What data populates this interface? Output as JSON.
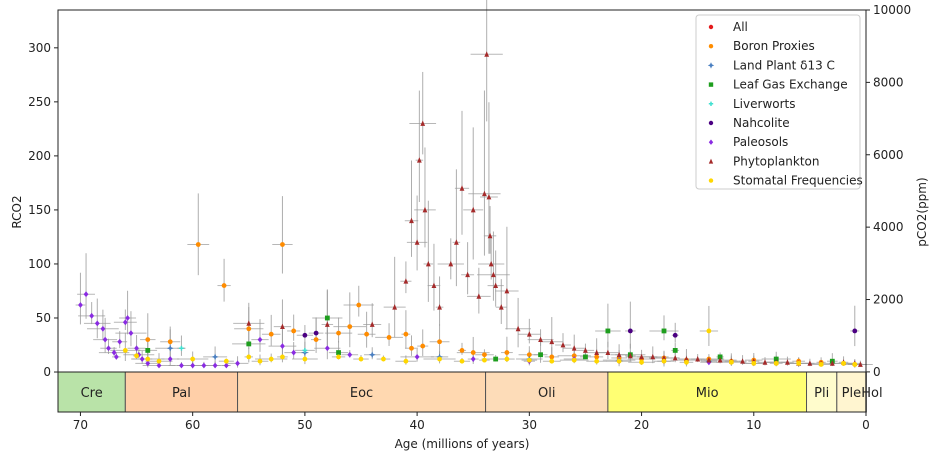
{
  "chart_data": {
    "type": "scatter",
    "xlabel": "Age (millions of years)",
    "ylabel_left": "RCO2",
    "ylabel_right": "pCO2(ppm)",
    "xlim": [
      72,
      0
    ],
    "ylim_left": [
      -37,
      335
    ],
    "ylim_right": [
      -1108,
      10000
    ],
    "x_ticks": [
      70,
      60,
      50,
      40,
      30,
      20,
      10,
      0
    ],
    "y_ticks_left": [
      0,
      50,
      100,
      150,
      200,
      250,
      300
    ],
    "y_ticks_right": [
      0,
      2000,
      4000,
      6000,
      8000,
      10000
    ],
    "legend": {
      "position": "top-right",
      "entries": [
        {
          "name": "All",
          "color": "#e41a1c",
          "marker": "circle"
        },
        {
          "name": "Boron Proxies",
          "color": "#ff8c00",
          "marker": "circle"
        },
        {
          "name": "Land Plant δ13 C",
          "color": "#4a7fc1",
          "marker": "star"
        },
        {
          "name": "Leaf Gas Exchange",
          "color": "#1e9e1e",
          "marker": "square"
        },
        {
          "name": "Liverworts",
          "color": "#40e0d0",
          "marker": "cross"
        },
        {
          "name": "Nahcolite",
          "color": "#4b0082",
          "marker": "circle"
        },
        {
          "name": "Paleosols",
          "color": "#8a2be2",
          "marker": "diamond"
        },
        {
          "name": "Phytoplankton",
          "color": "#a52a2a",
          "marker": "triangle"
        },
        {
          "name": "Stomatal Frequencies",
          "color": "#ffd700",
          "marker": "circle"
        }
      ]
    },
    "epochs": [
      {
        "label": "Cre",
        "start": 72,
        "end": 66,
        "color": "#b9e3a8"
      },
      {
        "label": "Pal",
        "start": 66,
        "end": 56,
        "color": "#ffcfa8"
      },
      {
        "label": "Eoc",
        "start": 56,
        "end": 33.9,
        "color": "#ffd8b0"
      },
      {
        "label": "Oli",
        "start": 33.9,
        "end": 23,
        "color": "#fddcb8"
      },
      {
        "label": "Mio",
        "start": 23,
        "end": 5.3,
        "color": "#ffff73"
      },
      {
        "label": "Pli",
        "start": 5.3,
        "end": 2.6,
        "color": "#fffccc"
      },
      {
        "label": "Ple",
        "start": 2.6,
        "end": 0.01,
        "color": "#fff5d0"
      },
      {
        "label": "Hol",
        "start": 0.01,
        "end": 0,
        "color": "#fff5d0"
      }
    ],
    "series": [
      {
        "name": "Boron Proxies",
        "points": [
          [
            59.5,
            118
          ],
          [
            57.2,
            80
          ],
          [
            52,
            118
          ],
          [
            45.2,
            62
          ],
          [
            44.5,
            35
          ],
          [
            42.5,
            32
          ],
          [
            41,
            35
          ],
          [
            40.5,
            22
          ],
          [
            39.5,
            24
          ],
          [
            38,
            28
          ],
          [
            36,
            20
          ],
          [
            35,
            18
          ],
          [
            34,
            16
          ],
          [
            32,
            18
          ],
          [
            30,
            16
          ],
          [
            28,
            14
          ],
          [
            26,
            15
          ],
          [
            24,
            14
          ],
          [
            22,
            13
          ],
          [
            20,
            12
          ],
          [
            18,
            13
          ],
          [
            16,
            11
          ],
          [
            14,
            12
          ],
          [
            12,
            10
          ],
          [
            10,
            11
          ],
          [
            8,
            9
          ],
          [
            6,
            10
          ],
          [
            4,
            9
          ],
          [
            2,
            8
          ],
          [
            1,
            7
          ],
          [
            64,
            30
          ],
          [
            62,
            28
          ],
          [
            55,
            40
          ],
          [
            53,
            35
          ],
          [
            51,
            38
          ],
          [
            49,
            30
          ],
          [
            47,
            36
          ],
          [
            46,
            42
          ]
        ]
      },
      {
        "name": "Land Plant δ13 C",
        "points": [
          [
            62,
            22
          ],
          [
            58,
            14
          ],
          [
            50,
            18
          ],
          [
            44,
            16
          ],
          [
            38,
            14
          ],
          [
            30,
            12
          ],
          [
            22,
            11
          ],
          [
            14,
            10
          ]
        ]
      },
      {
        "name": "Leaf Gas Exchange",
        "points": [
          [
            64,
            20
          ],
          [
            55,
            26
          ],
          [
            48,
            50
          ],
          [
            47,
            18
          ],
          [
            33,
            12
          ],
          [
            29,
            16
          ],
          [
            25,
            14
          ],
          [
            23,
            38
          ],
          [
            21,
            16
          ],
          [
            18,
            38
          ],
          [
            17,
            20
          ],
          [
            13,
            14
          ],
          [
            8,
            12
          ],
          [
            3,
            10
          ]
        ]
      },
      {
        "name": "Liverworts",
        "points": [
          [
            61,
            22
          ],
          [
            50,
            20
          ]
        ]
      },
      {
        "name": "Nahcolite",
        "points": [
          [
            50,
            34
          ],
          [
            49,
            36
          ],
          [
            21,
            38
          ],
          [
            17,
            34
          ],
          [
            1,
            38
          ]
        ]
      },
      {
        "name": "Paleosols",
        "points": [
          [
            70,
            62
          ],
          [
            69.5,
            72
          ],
          [
            69,
            52
          ],
          [
            68.5,
            45
          ],
          [
            68,
            40
          ],
          [
            67.8,
            30
          ],
          [
            67.5,
            22
          ],
          [
            67,
            18
          ],
          [
            66.8,
            14
          ],
          [
            66.5,
            28
          ],
          [
            66,
            46
          ],
          [
            65.8,
            50
          ],
          [
            65.5,
            36
          ],
          [
            65,
            22
          ],
          [
            64.8,
            16
          ],
          [
            64.5,
            12
          ],
          [
            64,
            8
          ],
          [
            63,
            6
          ],
          [
            62,
            12
          ],
          [
            61,
            6
          ],
          [
            60,
            6
          ],
          [
            59,
            6
          ],
          [
            58,
            6
          ],
          [
            57,
            6
          ],
          [
            56,
            8
          ],
          [
            54,
            30
          ],
          [
            52,
            24
          ],
          [
            51,
            18
          ],
          [
            48,
            22
          ],
          [
            46,
            16
          ],
          [
            40,
            14
          ],
          [
            35,
            12
          ],
          [
            30,
            10
          ],
          [
            26,
            12
          ],
          [
            22,
            10
          ],
          [
            18,
            10
          ],
          [
            14,
            9
          ],
          [
            10,
            8
          ],
          [
            6,
            8
          ]
        ]
      },
      {
        "name": "Phytoplankton",
        "points": [
          [
            55,
            45
          ],
          [
            52,
            42
          ],
          [
            48,
            44
          ],
          [
            44,
            44
          ],
          [
            42,
            60
          ],
          [
            41,
            84
          ],
          [
            40.5,
            140
          ],
          [
            40,
            120
          ],
          [
            39.8,
            196
          ],
          [
            39.5,
            230
          ],
          [
            39.3,
            150
          ],
          [
            39,
            100
          ],
          [
            38.5,
            80
          ],
          [
            38,
            60
          ],
          [
            37,
            100
          ],
          [
            36.5,
            120
          ],
          [
            36,
            170
          ],
          [
            35.5,
            90
          ],
          [
            35,
            150
          ],
          [
            34.5,
            70
          ],
          [
            34,
            165
          ],
          [
            33.8,
            294
          ],
          [
            33.6,
            162
          ],
          [
            33.5,
            126
          ],
          [
            33.4,
            100
          ],
          [
            33.2,
            90
          ],
          [
            33,
            80
          ],
          [
            32.5,
            60
          ],
          [
            32,
            75
          ],
          [
            31,
            40
          ],
          [
            30,
            35
          ],
          [
            29,
            30
          ],
          [
            28,
            28
          ],
          [
            27,
            25
          ],
          [
            26,
            22
          ],
          [
            25,
            20
          ],
          [
            24,
            18
          ],
          [
            23,
            18
          ],
          [
            22,
            16
          ],
          [
            21,
            15
          ],
          [
            20,
            14
          ],
          [
            19,
            14
          ],
          [
            18,
            13
          ],
          [
            17,
            13
          ],
          [
            16,
            12
          ],
          [
            15,
            12
          ],
          [
            14,
            11
          ],
          [
            13,
            11
          ],
          [
            12,
            10
          ],
          [
            11,
            10
          ],
          [
            10,
            10
          ],
          [
            9,
            9
          ],
          [
            8,
            9
          ],
          [
            7,
            9
          ],
          [
            6,
            8
          ],
          [
            5,
            8
          ],
          [
            4,
            8
          ],
          [
            3,
            8
          ],
          [
            2,
            9
          ],
          [
            1,
            8
          ],
          [
            0.5,
            7
          ]
        ]
      },
      {
        "name": "Stomatal Frequencies",
        "points": [
          [
            66,
            20
          ],
          [
            65,
            15
          ],
          [
            64,
            12
          ],
          [
            63,
            10
          ],
          [
            60,
            12
          ],
          [
            57,
            10
          ],
          [
            55,
            14
          ],
          [
            54,
            10
          ],
          [
            53,
            12
          ],
          [
            52,
            14
          ],
          [
            50,
            12
          ],
          [
            47,
            14
          ],
          [
            45,
            12
          ],
          [
            43,
            12
          ],
          [
            41,
            10
          ],
          [
            38,
            12
          ],
          [
            36,
            10
          ],
          [
            34,
            11
          ],
          [
            32,
            12
          ],
          [
            30,
            11
          ],
          [
            28,
            10
          ],
          [
            26,
            11
          ],
          [
            24,
            10
          ],
          [
            22,
            10
          ],
          [
            20,
            9
          ],
          [
            18,
            10
          ],
          [
            16,
            9
          ],
          [
            14,
            38
          ],
          [
            12,
            9
          ],
          [
            10,
            8
          ],
          [
            8,
            8
          ],
          [
            6,
            8
          ],
          [
            4,
            7
          ],
          [
            2,
            8
          ],
          [
            1,
            7
          ]
        ]
      }
    ]
  }
}
